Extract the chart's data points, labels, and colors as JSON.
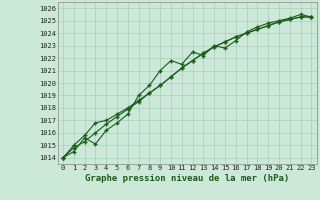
{
  "xlabel": "Graphe pression niveau de la mer (hPa)",
  "x": [
    0,
    1,
    2,
    3,
    4,
    5,
    6,
    7,
    8,
    9,
    10,
    11,
    12,
    13,
    14,
    15,
    16,
    17,
    18,
    19,
    20,
    21,
    22,
    23
  ],
  "line1": [
    1014.0,
    1014.5,
    1015.6,
    1015.1,
    1016.2,
    1016.8,
    1017.5,
    1019.0,
    1019.8,
    1021.0,
    1021.8,
    1021.5,
    1022.5,
    1022.2,
    1023.0,
    1022.8,
    1023.4,
    1024.1,
    1024.5,
    1024.8,
    1025.0,
    1025.2,
    1025.5,
    1025.3
  ],
  "line2": [
    1014.0,
    1015.0,
    1015.8,
    1016.8,
    1017.0,
    1017.5,
    1018.0,
    1018.6,
    1019.2,
    1019.8,
    1020.5,
    1021.2,
    1021.8,
    1022.4,
    1022.9,
    1023.3,
    1023.7,
    1024.0,
    1024.3,
    1024.6,
    1024.9,
    1025.1,
    1025.3,
    1025.3
  ],
  "line3": [
    1014.0,
    1014.8,
    1015.3,
    1016.0,
    1016.7,
    1017.3,
    1017.9,
    1018.5,
    1019.2,
    1019.8,
    1020.5,
    1021.2,
    1021.8,
    1022.4,
    1022.9,
    1023.3,
    1023.7,
    1024.0,
    1024.3,
    1024.6,
    1024.9,
    1025.1,
    1025.3,
    1025.3
  ],
  "bg_color": "#cce8d8",
  "grid_color": "#aaceba",
  "line_color": "#1a5c1a",
  "marker": "+",
  "ylim": [
    1013.5,
    1026.5
  ],
  "yticks": [
    1014,
    1015,
    1016,
    1017,
    1018,
    1019,
    1020,
    1021,
    1022,
    1023,
    1024,
    1025,
    1026
  ],
  "xticks": [
    0,
    1,
    2,
    3,
    4,
    5,
    6,
    7,
    8,
    9,
    10,
    11,
    12,
    13,
    14,
    15,
    16,
    17,
    18,
    19,
    20,
    21,
    22,
    23
  ],
  "xlabel_fontsize": 6.5,
  "tick_fontsize": 5.0
}
